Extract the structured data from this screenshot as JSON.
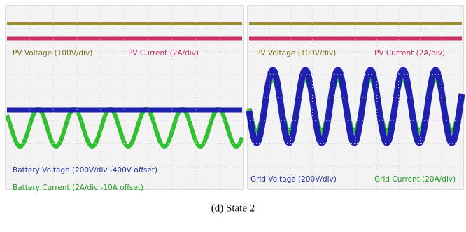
{
  "panels": [
    {
      "top_labels": [
        "PV Voltage (100V/div)",
        "PV Current (2A/div)"
      ],
      "bottom_labels": [
        "Battery Voltage (200V/div -400V offset)",
        "Battery Current (2A/div -10A offset)"
      ]
    },
    {
      "top_labels": [
        "PV Voltage (100V/div)",
        "PV Current (2A/div)"
      ],
      "bottom_labels": [
        "Grid Voltage (200V/div)",
        "Grid Current (20A/div)"
      ]
    }
  ],
  "caption": "(d) State 2"
}
